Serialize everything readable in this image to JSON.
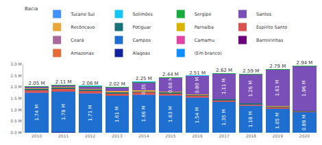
{
  "chart_data": {
    "type": "bar",
    "stacked": true,
    "legend_title": "Bacia",
    "legend": "top",
    "grid": false,
    "data_labels": true,
    "categories": [
      "2010",
      "2011",
      "2012",
      "2013",
      "2014",
      "2015",
      "2016",
      "2017",
      "2018",
      "2019",
      "2020"
    ],
    "ylim": [
      0,
      3
    ],
    "yticks": [
      {
        "value": 0,
        "label": "0.0 M"
      },
      {
        "value": 0.5,
        "label": "0.5 M"
      },
      {
        "value": 1,
        "label": "1.0 M"
      },
      {
        "value": 1.5,
        "label": "1.5 M"
      },
      {
        "value": 2,
        "label": "2.0 M"
      },
      {
        "value": 2.5,
        "label": "2.5 M"
      },
      {
        "value": 3,
        "label": "3.0 M"
      }
    ],
    "series": [
      {
        "name": "(Em branco)",
        "color": "#118DFF",
        "values": [
          0,
          0,
          0,
          0,
          0,
          0,
          0,
          0,
          0,
          0,
          0
        ]
      },
      {
        "name": "Alagoas",
        "color": "#12239E",
        "values": [
          0.01,
          0.02,
          0.01,
          0,
          0,
          0,
          0,
          0,
          0,
          0,
          0
        ]
      },
      {
        "name": "Amazonas",
        "color": "#E66C37",
        "values": [
          0,
          0,
          0,
          0,
          0,
          0,
          0,
          0,
          0,
          0,
          0
        ]
      },
      {
        "name": "Barreirinhas",
        "color": "#6B007B",
        "values": [
          0,
          0,
          0,
          0,
          0,
          0,
          0,
          0,
          0,
          0,
          0
        ]
      },
      {
        "name": "Camamu",
        "color": "#E044A7",
        "values": [
          0,
          0,
          0,
          0,
          0,
          0,
          0,
          0,
          0,
          0,
          0
        ]
      },
      {
        "name": "Campos",
        "color": "#1E6FD0",
        "values": [
          1.74,
          1.78,
          1.71,
          1.61,
          1.66,
          1.63,
          1.54,
          1.35,
          1.18,
          1.05,
          0.89
        ],
        "value_labels": [
          "1.74 M",
          "1.78 M",
          "1.71 M",
          "1.61 M",
          "1.66 M",
          "1.63 M",
          "1.54 M",
          "1.35 M",
          "1.18 M",
          "1.05 M",
          "0.89 M"
        ]
      },
      {
        "name": "Ceará",
        "color": "#A66999",
        "values": [
          0.01,
          0.01,
          0.01,
          0.01,
          0.01,
          0.01,
          0.01,
          0.01,
          0.01,
          0.01,
          0.01
        ]
      },
      {
        "name": "Espírito Santo",
        "color": "#D9534F",
        "values": [
          0.1,
          0.1,
          0.1,
          0.1,
          0.09,
          0.08,
          0.06,
          0.06,
          0.05,
          0.05,
          0.03
        ]
      },
      {
        "name": "Parnaíba",
        "color": "#D9B300",
        "values": [
          0,
          0,
          0,
          0,
          0,
          0,
          0,
          0,
          0,
          0,
          0
        ]
      },
      {
        "name": "Potiguar",
        "color": "#197278",
        "values": [
          0.06,
          0.06,
          0.06,
          0.06,
          0.05,
          0.05,
          0.04,
          0.04,
          0.04,
          0.03,
          0.02
        ]
      },
      {
        "name": "Recôncavo",
        "color": "#E8A838",
        "values": [
          0.04,
          0.04,
          0.04,
          0.04,
          0.04,
          0.03,
          0.03,
          0.02,
          0.02,
          0.02,
          0.01
        ]
      },
      {
        "name": "Santos",
        "color": "#7B4FB8",
        "values": [
          0.04,
          0.05,
          0.08,
          0.15,
          0.35,
          0.6,
          0.8,
          1.11,
          1.26,
          1.61,
          1.96
        ],
        "value_labels": [
          null,
          null,
          null,
          null,
          "0.35 M",
          "0.60 M",
          "0.80 M",
          "1.11 M",
          "1.26 M",
          "1.61 M",
          "1.96 M"
        ]
      },
      {
        "name": "Sergipe",
        "color": "#1AAB40",
        "values": [
          0.03,
          0.03,
          0.03,
          0.03,
          0.03,
          0.02,
          0.02,
          0.02,
          0.02,
          0.01,
          0.01
        ]
      },
      {
        "name": "Solimões",
        "color": "#15C6F4",
        "values": [
          0.02,
          0.02,
          0.02,
          0.02,
          0.02,
          0.02,
          0.01,
          0.01,
          0.01,
          0.01,
          0.01
        ]
      },
      {
        "name": "Tucano Sul",
        "color": "#4092FF",
        "values": [
          0,
          0,
          0,
          0,
          0,
          0,
          0,
          0,
          0,
          0,
          0
        ]
      }
    ],
    "totals": [
      2.05,
      2.11,
      2.06,
      2.02,
      2.25,
      2.44,
      2.51,
      2.62,
      2.59,
      2.79,
      2.94
    ],
    "total_labels": [
      "2.05 M",
      "2.11 M",
      "2.06 M",
      "2.02 M",
      "2.25 M",
      "2.44 M",
      "2.51 M",
      "2.62 M",
      "2.59 M",
      "2.79 M",
      "2.94 M"
    ]
  }
}
